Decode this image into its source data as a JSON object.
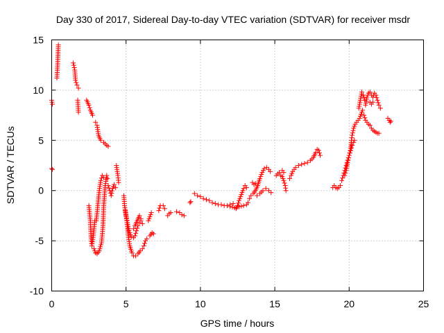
{
  "chart_data": {
    "type": "scatter",
    "title": "Day 330 of 2017, Sidereal Day-to-day VTEC variation (SDTVAR) for receiver msdr",
    "xlabel": "GPS time / hours",
    "ylabel": "SDTVAR / TECUs",
    "xlim": [
      0,
      25
    ],
    "ylim": [
      -10,
      15
    ],
    "xticks": [
      "0",
      "5",
      "10",
      "15",
      "20",
      "25"
    ],
    "yticks": [
      "-10",
      "-5",
      "0",
      "5",
      "10",
      "15"
    ],
    "grid": true,
    "marker": "+",
    "series_color": "#ff0000",
    "series": [
      {
        "name": "msdr",
        "segments": [
          [
            [
              0.0,
              2.2
            ],
            [
              0.05,
              2.1
            ]
          ],
          [
            [
              0.0,
              9.0
            ],
            [
              0.05,
              8.6
            ]
          ],
          [
            [
              0.35,
              11.2
            ],
            [
              0.4,
              12.5
            ],
            [
              0.45,
              14.5
            ]
          ],
          [
            [
              1.45,
              12.7
            ],
            [
              1.55,
              12.0
            ],
            [
              1.6,
              11.0
            ],
            [
              1.7,
              10.5
            ],
            [
              1.8,
              10.2
            ]
          ],
          [
            [
              1.75,
              9.0
            ],
            [
              1.8,
              7.8
            ]
          ],
          [
            [
              2.35,
              9.0
            ],
            [
              2.5,
              8.5
            ],
            [
              2.6,
              8.0
            ],
            [
              2.75,
              7.5
            ]
          ],
          [
            [
              2.95,
              6.8
            ],
            [
              3.05,
              6.5
            ],
            [
              3.15,
              5.5
            ],
            [
              3.3,
              5.0
            ],
            [
              3.5,
              4.8
            ],
            [
              3.7,
              4.5
            ],
            [
              3.8,
              4.4
            ]
          ],
          [
            [
              2.5,
              -1.5
            ],
            [
              2.6,
              -3.0
            ],
            [
              2.65,
              -4.8
            ],
            [
              2.7,
              -5.5
            ],
            [
              2.8,
              -4.5
            ],
            [
              2.9,
              -3.0
            ]
          ],
          [
            [
              2.85,
              -5.8
            ],
            [
              2.95,
              -6.2
            ],
            [
              3.05,
              -6.3
            ],
            [
              3.2,
              -6.0
            ],
            [
              3.35,
              -5.2
            ],
            [
              3.45,
              -3.5
            ],
            [
              3.5,
              -1.5
            ],
            [
              3.6,
              0.5
            ],
            [
              3.7,
              1.5
            ],
            [
              3.75,
              1.2
            ]
          ],
          [
            [
              3.0,
              -3.0
            ],
            [
              3.1,
              -1.5
            ],
            [
              3.2,
              0.0
            ],
            [
              3.3,
              1.0
            ],
            [
              3.4,
              1.5
            ],
            [
              3.5,
              1.3
            ]
          ],
          [
            [
              3.8,
              0.5
            ],
            [
              3.9,
              0.0
            ],
            [
              4.0,
              -0.5
            ],
            [
              4.1,
              0.2
            ],
            [
              4.2,
              0.6
            ],
            [
              4.3,
              0.3
            ]
          ],
          [
            [
              4.35,
              2.5
            ],
            [
              4.45,
              1.5
            ],
            [
              4.5,
              0.8
            ]
          ],
          [
            [
              4.85,
              -0.5
            ],
            [
              4.9,
              -1.5
            ],
            [
              5.0,
              -2.5
            ],
            [
              5.1,
              -3.2
            ],
            [
              5.2,
              -4.0
            ],
            [
              5.35,
              -4.6
            ],
            [
              5.5,
              -4.7
            ],
            [
              5.6,
              -4.5
            ],
            [
              5.7,
              -4.0
            ],
            [
              5.8,
              -3.5
            ],
            [
              5.9,
              -3.2
            ],
            [
              6.0,
              -3.0
            ],
            [
              6.1,
              -3.3
            ]
          ],
          [
            [
              4.95,
              -2.0
            ],
            [
              5.05,
              -3.0
            ],
            [
              5.15,
              -4.5
            ],
            [
              5.25,
              -5.5
            ],
            [
              5.4,
              -6.2
            ],
            [
              5.5,
              -6.5
            ],
            [
              5.65,
              -6.5
            ],
            [
              5.8,
              -6.3
            ],
            [
              5.95,
              -6.0
            ],
            [
              6.1,
              -5.8
            ],
            [
              6.2,
              -5.5
            ],
            [
              6.3,
              -5.0
            ],
            [
              6.4,
              -4.8
            ]
          ],
          [
            [
              5.5,
              -3.8
            ],
            [
              5.6,
              -3.5
            ],
            [
              5.75,
              -3.0
            ],
            [
              5.9,
              -2.5
            ],
            [
              6.0,
              -2.8
            ]
          ],
          [
            [
              6.5,
              -3.0
            ],
            [
              6.6,
              -2.6
            ],
            [
              6.7,
              -2.2
            ]
          ],
          [
            [
              6.6,
              -4.5
            ],
            [
              6.75,
              -4.2
            ],
            [
              6.85,
              -4.3
            ]
          ],
          [
            [
              7.2,
              -2.0
            ],
            [
              7.3,
              -1.5
            ],
            [
              7.5,
              -1.5
            ],
            [
              7.6,
              -1.8
            ]
          ],
          [
            [
              7.8,
              -2.5
            ],
            [
              7.9,
              -2.3
            ],
            [
              8.0,
              -2.2
            ]
          ],
          [
            [
              8.4,
              -2.1
            ],
            [
              8.6,
              -2.2
            ],
            [
              8.75,
              -2.4
            ],
            [
              8.9,
              -2.5
            ]
          ],
          [
            [
              9.3,
              -1.2
            ],
            [
              9.35,
              -1.1
            ]
          ],
          [
            [
              9.6,
              -0.3
            ],
            [
              9.8,
              -0.5
            ],
            [
              10.0,
              -0.6
            ],
            [
              10.2,
              -0.8
            ],
            [
              10.4,
              -0.9
            ],
            [
              10.6,
              -1.0
            ],
            [
              10.8,
              -1.2
            ],
            [
              11.0,
              -1.3
            ],
            [
              11.2,
              -1.4
            ],
            [
              11.4,
              -1.4
            ],
            [
              11.6,
              -1.5
            ],
            [
              11.8,
              -1.5
            ],
            [
              12.0,
              -1.4
            ],
            [
              12.2,
              -1.3
            ]
          ],
          [
            [
              12.4,
              -1.8
            ],
            [
              12.5,
              -1.5
            ],
            [
              12.6,
              -1.0
            ],
            [
              12.7,
              -0.6
            ],
            [
              12.8,
              -0.2
            ],
            [
              12.9,
              0.2
            ],
            [
              13.0,
              0.5
            ],
            [
              13.1,
              0.3
            ]
          ],
          [
            [
              12.0,
              -1.6
            ],
            [
              12.3,
              -1.7
            ],
            [
              12.6,
              -1.6
            ],
            [
              12.9,
              -1.5
            ],
            [
              13.1,
              -1.4
            ],
            [
              13.2,
              -1.2
            ]
          ],
          [
            [
              13.3,
              -0.8
            ],
            [
              13.4,
              -0.5
            ],
            [
              13.55,
              -0.3
            ],
            [
              13.7,
              0.0
            ],
            [
              13.85,
              0.5
            ],
            [
              14.0,
              1.2
            ],
            [
              14.15,
              1.8
            ],
            [
              14.3,
              2.2
            ],
            [
              14.45,
              2.3
            ],
            [
              14.6,
              2.1
            ],
            [
              14.7,
              1.9
            ]
          ],
          [
            [
              13.5,
              0.8
            ],
            [
              13.6,
              0.6
            ],
            [
              13.7,
              0.7
            ]
          ],
          [
            [
              13.8,
              -0.5
            ],
            [
              14.0,
              -0.3
            ],
            [
              14.2,
              0.0
            ],
            [
              14.4,
              0.2
            ],
            [
              14.6,
              0.0
            ],
            [
              14.75,
              -0.2
            ]
          ],
          [
            [
              15.1,
              1.5
            ],
            [
              15.3,
              1.8
            ],
            [
              15.4,
              1.5
            ]
          ],
          [
            [
              15.5,
              1.4
            ],
            [
              15.6,
              1.0
            ],
            [
              15.7,
              0.5
            ],
            [
              15.75,
              0.0
            ]
          ],
          [
            [
              15.5,
              2.0
            ],
            [
              15.6,
              1.8
            ]
          ],
          [
            [
              16.0,
              1.2
            ],
            [
              16.1,
              1.5
            ],
            [
              16.2,
              1.9
            ],
            [
              16.3,
              2.1
            ],
            [
              16.4,
              2.3
            ]
          ],
          [
            [
              16.6,
              2.5
            ],
            [
              16.8,
              2.6
            ],
            [
              17.0,
              2.7
            ],
            [
              17.2,
              2.8
            ],
            [
              17.4,
              3.0
            ],
            [
              17.6,
              3.3
            ],
            [
              17.75,
              3.8
            ],
            [
              17.85,
              4.1
            ],
            [
              17.95,
              4.0
            ],
            [
              18.05,
              3.5
            ]
          ],
          [
            [
              18.9,
              0.3
            ],
            [
              19.0,
              0.5
            ],
            [
              19.1,
              0.3
            ],
            [
              19.2,
              0.2
            ],
            [
              19.3,
              0.3
            ],
            [
              19.4,
              0.5
            ]
          ],
          [
            [
              19.5,
              1.0
            ],
            [
              19.6,
              1.5
            ],
            [
              19.7,
              2.0
            ],
            [
              19.8,
              2.5
            ],
            [
              19.9,
              3.0
            ],
            [
              20.0,
              3.5
            ],
            [
              20.1,
              4.0
            ],
            [
              20.2,
              4.5
            ],
            [
              20.3,
              4.8
            ],
            [
              20.35,
              5.0
            ]
          ],
          [
            [
              19.7,
              1.5
            ],
            [
              19.8,
              2.0
            ],
            [
              19.9,
              2.8
            ],
            [
              20.0,
              3.5
            ],
            [
              20.1,
              4.2
            ],
            [
              20.15,
              5.0
            ],
            [
              20.2,
              5.5
            ],
            [
              20.3,
              6.2
            ],
            [
              20.4,
              6.6
            ],
            [
              20.5,
              6.8
            ],
            [
              20.6,
              7.0
            ],
            [
              20.7,
              7.2
            ],
            [
              20.8,
              7.6
            ],
            [
              20.9,
              8.0
            ]
          ],
          [
            [
              20.65,
              8.2
            ],
            [
              20.75,
              9.0
            ],
            [
              20.85,
              9.8
            ],
            [
              20.95,
              9.5
            ],
            [
              21.05,
              9.0
            ]
          ],
          [
            [
              21.0,
              7.5
            ],
            [
              21.1,
              7.0
            ],
            [
              21.2,
              6.8
            ],
            [
              21.3,
              6.6
            ],
            [
              21.4,
              6.5
            ],
            [
              21.5,
              6.2
            ],
            [
              21.6,
              6.0
            ],
            [
              21.7,
              5.9
            ],
            [
              21.8,
              5.8
            ],
            [
              21.9,
              5.7
            ],
            [
              22.0,
              5.7
            ]
          ],
          [
            [
              21.1,
              8.5
            ],
            [
              21.2,
              9.3
            ],
            [
              21.3,
              9.7
            ],
            [
              21.4,
              9.8
            ],
            [
              21.5,
              9.5
            ],
            [
              21.6,
              9.3
            ],
            [
              21.7,
              9.7
            ],
            [
              21.8,
              9.5
            ],
            [
              21.9,
              9.0
            ],
            [
              22.0,
              8.5
            ],
            [
              22.1,
              8.2
            ]
          ],
          [
            [
              21.4,
              8.8
            ],
            [
              21.5,
              8.6
            ],
            [
              21.6,
              8.8
            ]
          ],
          [
            [
              22.6,
              7.2
            ],
            [
              22.7,
              7.0
            ],
            [
              22.75,
              6.8
            ],
            [
              22.8,
              6.9
            ]
          ]
        ]
      }
    ]
  }
}
